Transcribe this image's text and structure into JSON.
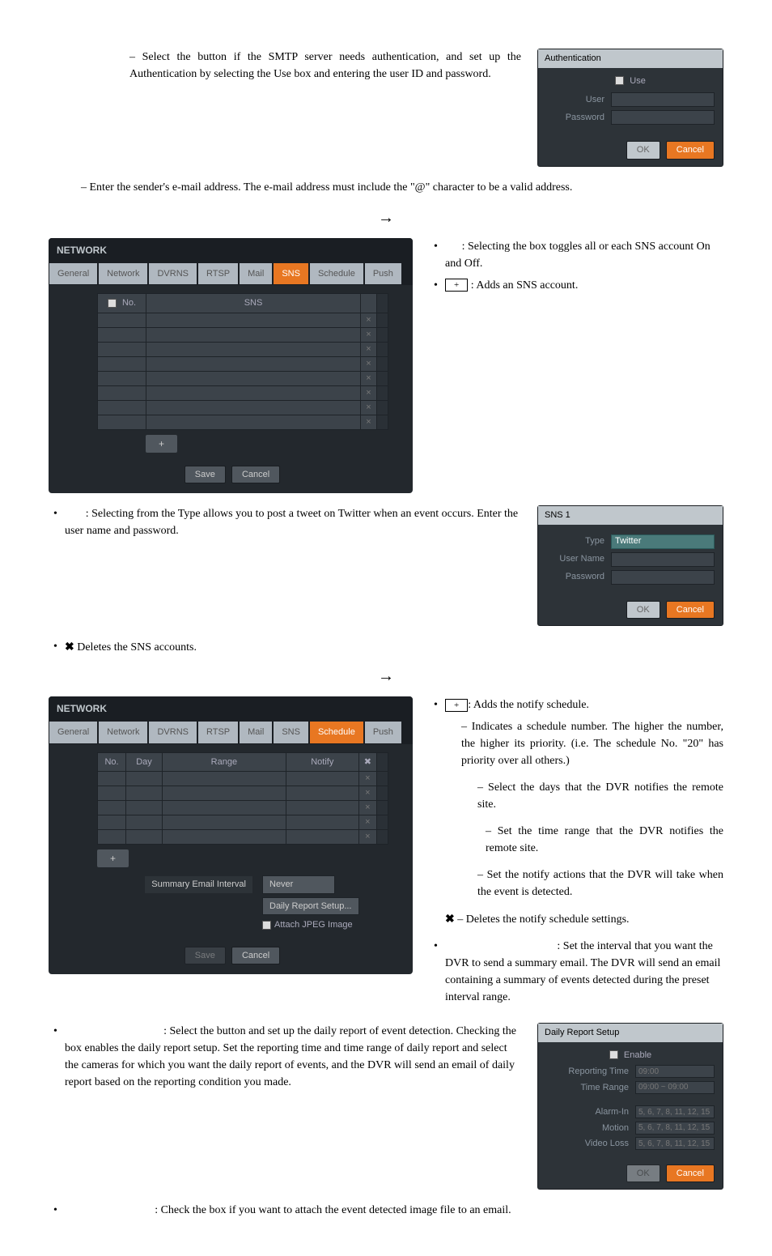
{
  "auth_text": " – Select the button if the SMTP server needs authentication, and set up the Authentication by selecting the Use box and entering the user ID and password.",
  "sender_text": " – Enter the sender's e-mail address.  The e-mail address must include the \"@\" character to be a valid address.",
  "arrow": "→",
  "auth_panel": {
    "title": "Authentication",
    "use": "Use",
    "user": "User",
    "password": "Password",
    "ok": "OK",
    "cancel": "Cancel"
  },
  "network_sns": {
    "title": "NETWORK",
    "tabs": [
      "General",
      "Network",
      "DVRNS",
      "RTSP",
      "Mail",
      "SNS",
      "Schedule",
      "Push"
    ],
    "active_tab": "SNS",
    "col_no": "No.",
    "col_sns": "SNS",
    "add": "+",
    "save": "Save",
    "cancel": "Cancel",
    "row_count": 8
  },
  "sns_bullets": {
    "b1_pre": ": Selecting the box toggles all or each SNS account On and Off.",
    "b2": ":  Adds an SNS account."
  },
  "sns_selecting": ": Selecting              from the Type allows you to post a tweet on Twitter when an event occurs.  Enter the user name and password.",
  "sns_delete": "  Deletes the SNS accounts.",
  "sns1_panel": {
    "title": "SNS 1",
    "type": "Type",
    "type_val": "Twitter",
    "user": "User Name",
    "password": "Password",
    "ok": "OK",
    "cancel": "Cancel"
  },
  "network_sched": {
    "title": "NETWORK",
    "tabs": [
      "General",
      "Network",
      "DVRNS",
      "RTSP",
      "Mail",
      "SNS",
      "Schedule",
      "Push"
    ],
    "active_tab": "Schedule",
    "col_no": "No.",
    "col_day": "Day",
    "col_range": "Range",
    "col_notify": "Notify",
    "summary_label": "Summary Email Interval",
    "never": "Never",
    "daily_setup": "Daily Report Setup...",
    "attach": "Attach JPEG Image",
    "save": "Save",
    "cancel": "Cancel",
    "add": "+",
    "row_count": 5
  },
  "sched_right": {
    "b1": ":  Adds the notify schedule.",
    "desc": "– Indicates a schedule number.  The higher the number, the higher its priority. (i.e. The schedule No. \"20\" has priority over all others.)",
    "day": "– Select the days that the DVR notifies the remote site.",
    "range": "– Set the time range that the DVR notifies the remote site.",
    "notify": "– Set the notify actions that the DVR will take when the event is detected.",
    "del": "– Deletes the notify schedule settings.",
    "summary": ": Set the interval that you want the DVR to send a summary email. The DVR will send an email containing a summary of events detected during the preset interval range."
  },
  "daily_text": ":  Select the button and set up the daily report of event detection.  Checking the             box enables the daily report setup.  Set the reporting time and time range of daily report and select the cameras for which you want the daily report of events, and the DVR will send an email of daily report based on the reporting condition you made.",
  "daily_panel": {
    "title": "Daily Report Setup",
    "enable": "Enable",
    "rep_time": "Reporting Time",
    "rep_time_val": "09:00",
    "time_range": "Time Range",
    "time_range_val": "09:00 ~ 09:00",
    "alarm_in": "Alarm-In",
    "motion": "Motion",
    "video_loss": "Video Loss",
    "cam_list": "5, 6, 7, 8, 11, 12, 15",
    "ok": "OK",
    "cancel": "Cancel"
  },
  "attach_text": ":  Check the box if you want to attach the event detected image file to an email.",
  "x_glyph": "✖",
  "colors": {
    "panel_bg": "#2d3338",
    "orange": "#e87722",
    "gray_btn": "#c0c7cc"
  }
}
